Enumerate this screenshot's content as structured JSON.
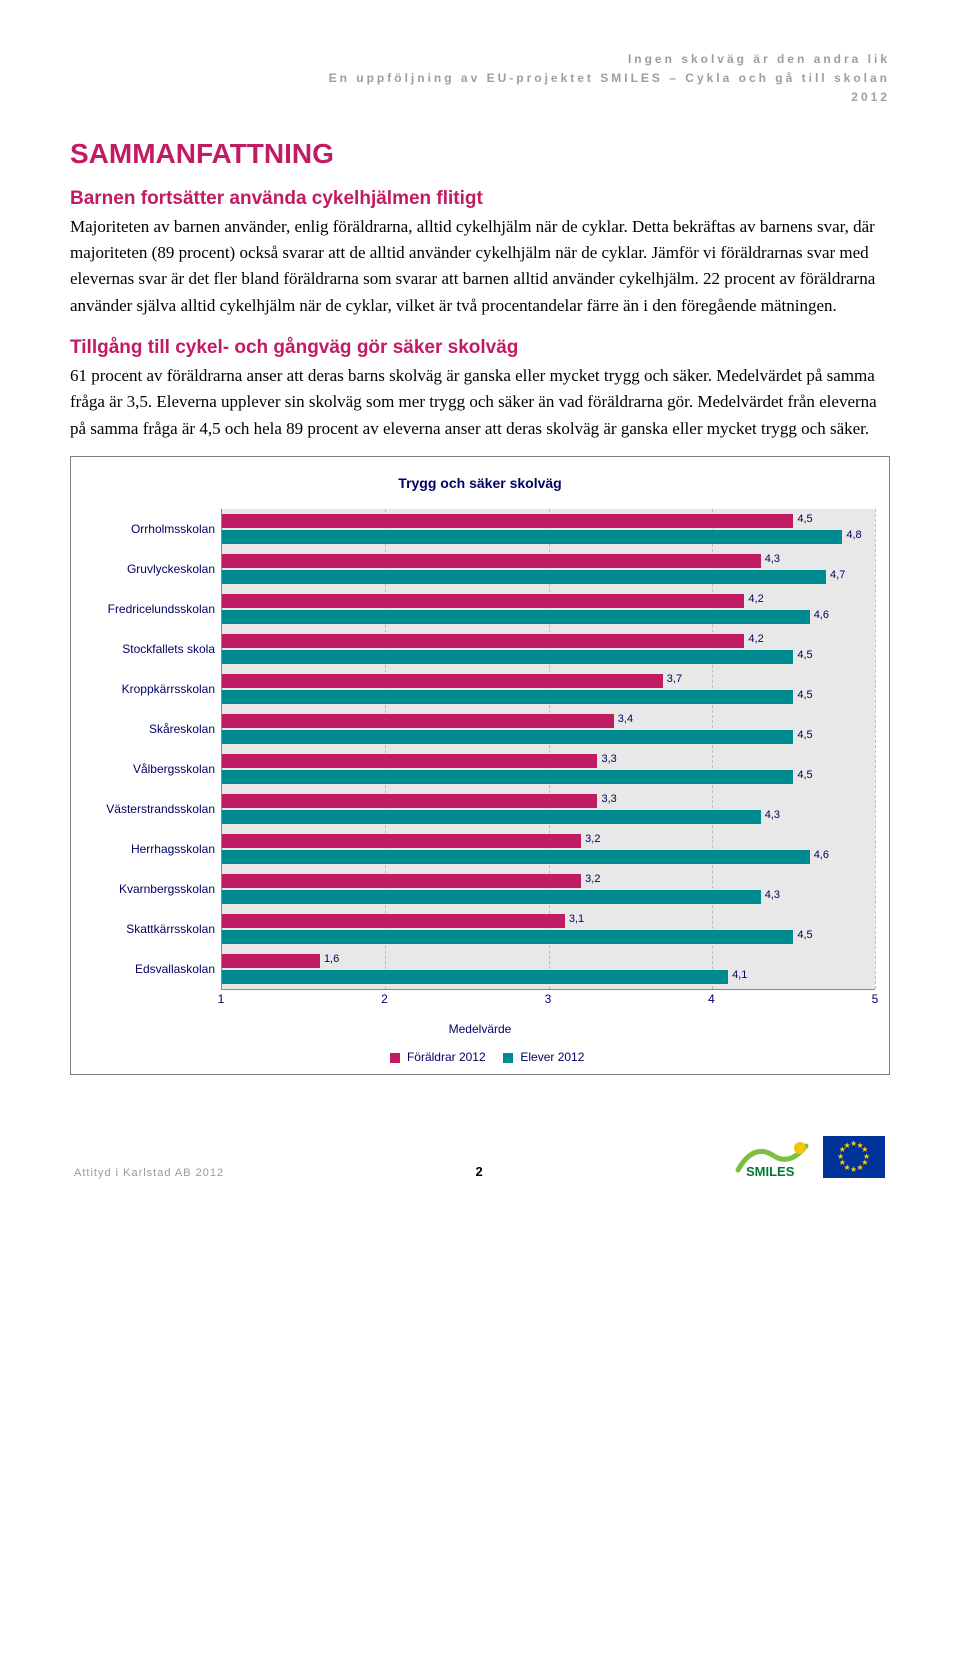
{
  "header": {
    "line1": "Ingen skolväg är den andra lik",
    "line2": "En uppföljning av EU-projektet SMILES – Cykla och gå till skolan",
    "line3": "2012"
  },
  "h1": "SAMMANFATTNING",
  "section1": {
    "heading": "Barnen fortsätter använda cykelhjälmen flitigt",
    "body": "Majoriteten av barnen använder, enlig föräldrarna, alltid cykelhjälm när de cyklar. Detta bekräftas av barnens svar, där majoriteten (89 procent) också svarar att de alltid använder cykelhjälm när de cyklar. Jämför vi föräldrarnas svar med elevernas svar är det fler bland föräldrarna som svarar att barnen alltid använder cykelhjälm. 22 procent av föräldrarna använder själva alltid cykelhjälm när de cyklar, vilket är två procentandelar färre än i den föregående mätningen."
  },
  "section2": {
    "heading": "Tillgång till cykel- och gångväg gör säker skolväg",
    "body": "61 procent av föräldrarna anser att deras barns skolväg är ganska eller mycket trygg och säker. Medelvärdet på samma fråga är 3,5. Eleverna upplever sin skolväg som mer trygg och säker än vad föräldrarna gör. Medelvärdet från eleverna på samma fråga är 4,5 och hela 89 procent av eleverna anser att deras skolväg är ganska eller mycket trygg och säker."
  },
  "chart": {
    "title": "Trygg och säker skolväg",
    "x_axis_label": "Medelvärde",
    "x_min": 1,
    "x_max": 5,
    "x_ticks": [
      1,
      2,
      3,
      4,
      5
    ],
    "plot_background": "#e8e8e8",
    "grid_color": "#bdbdbd",
    "text_color": "#000066",
    "series": [
      {
        "name": "Föräldrar 2012",
        "color": "#c11b63"
      },
      {
        "name": "Elever 2012",
        "color": "#008a91"
      }
    ],
    "categories": [
      {
        "label": "Orrholmsskolan",
        "foraldrar": 4.5,
        "elever": 4.8
      },
      {
        "label": "Gruvlyckeskolan",
        "foraldrar": 4.3,
        "elever": 4.7
      },
      {
        "label": "Fredricelundsskolan",
        "foraldrar": 4.2,
        "elever": 4.6
      },
      {
        "label": "Stockfallets skola",
        "foraldrar": 4.2,
        "elever": 4.5
      },
      {
        "label": "Kroppkärrsskolan",
        "foraldrar": 3.7,
        "elever": 4.5
      },
      {
        "label": "Skåreskolan",
        "foraldrar": 3.4,
        "elever": 4.5
      },
      {
        "label": "Vålbergsskolan",
        "foraldrar": 3.3,
        "elever": 4.5
      },
      {
        "label": "Västerstrandsskolan",
        "foraldrar": 3.3,
        "elever": 4.3
      },
      {
        "label": "Herrhagsskolan",
        "foraldrar": 3.2,
        "elever": 4.6
      },
      {
        "label": "Kvarnbergsskolan",
        "foraldrar": 3.2,
        "elever": 4.3
      },
      {
        "label": "Skattkärrsskolan",
        "foraldrar": 3.1,
        "elever": 4.5
      },
      {
        "label": "Edsvallaskolan",
        "foraldrar": 1.6,
        "elever": 4.1
      }
    ]
  },
  "footer": {
    "left": "Attityd i Karlstad AB 2012",
    "page": "2",
    "logo_text": "SMILES"
  }
}
